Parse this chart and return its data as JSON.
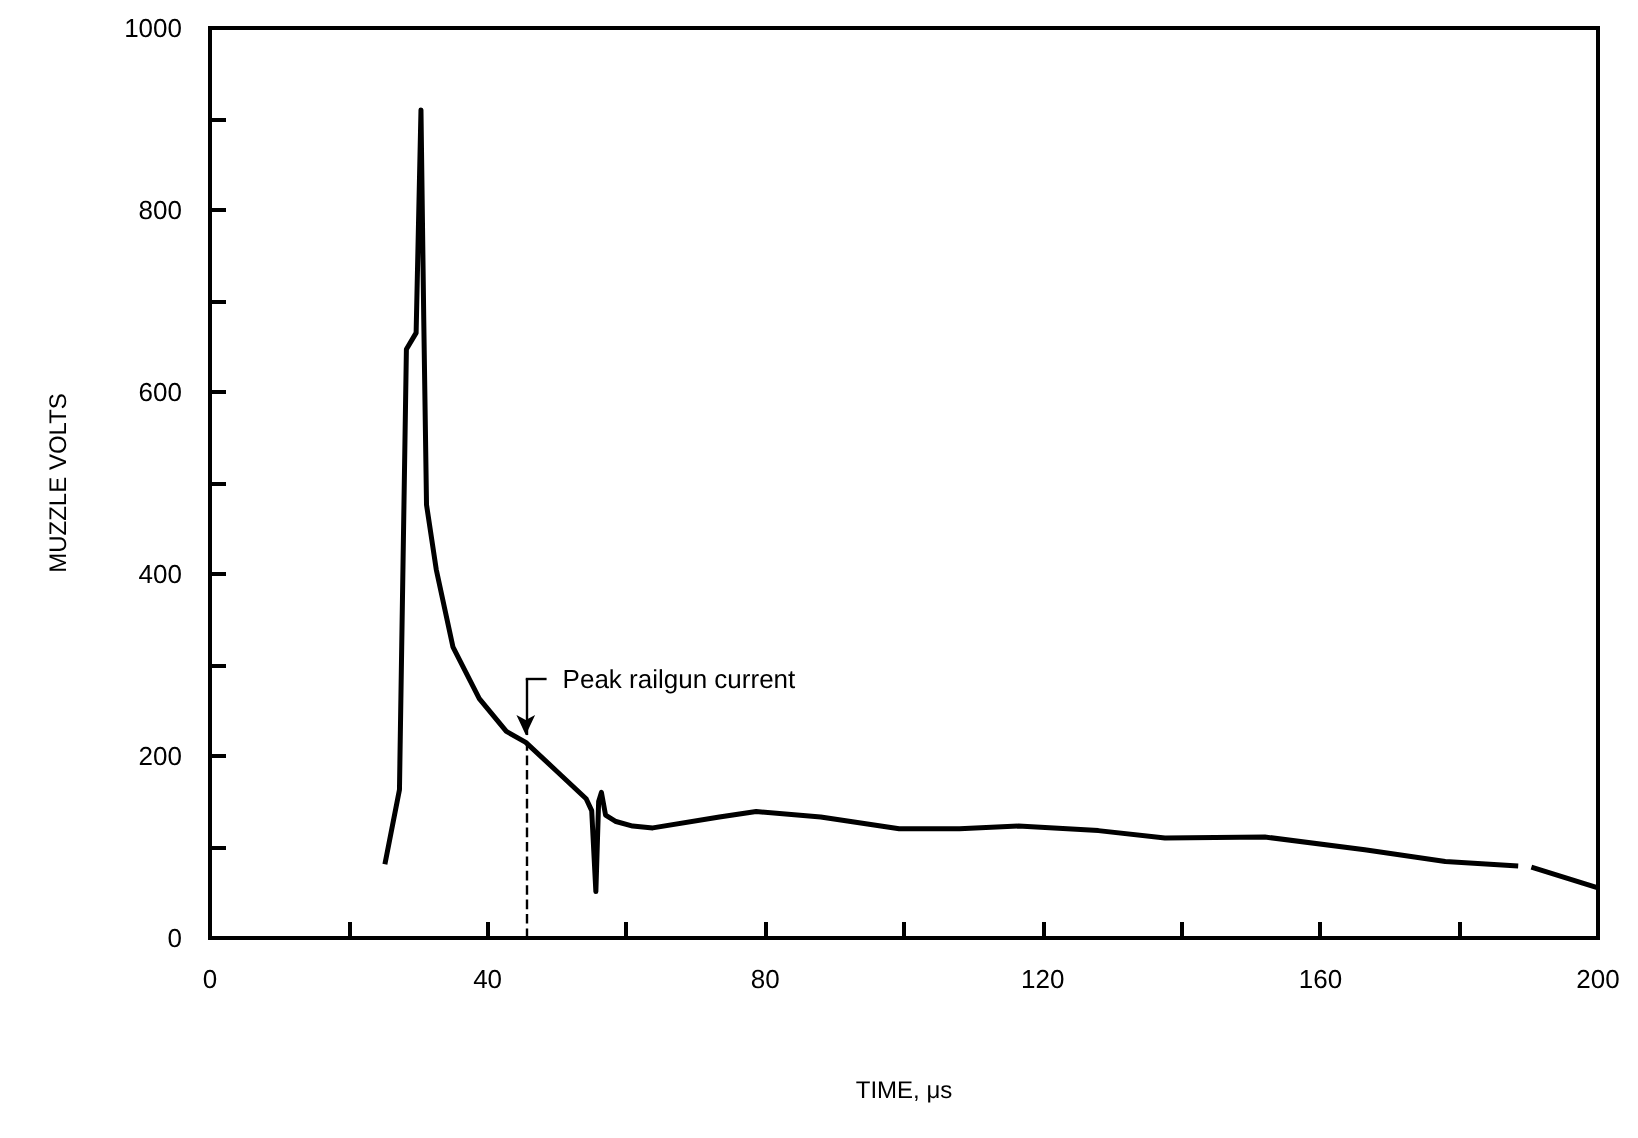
{
  "chart_data": {
    "type": "line",
    "xlabel": "TIME, μs",
    "ylabel": "MUZZLE VOLTS",
    "xlim": [
      0,
      200
    ],
    "ylim": [
      0,
      1000
    ],
    "xticks": [
      0,
      {
        "value": 20,
        "label": null
      },
      40,
      {
        "value": 60,
        "label": null
      },
      80,
      {
        "value": 100,
        "label": null
      },
      120,
      {
        "value": 140,
        "label": null
      },
      160,
      {
        "value": 180,
        "label": null
      },
      200
    ],
    "yticks": [
      0,
      {
        "value": 100,
        "label": null
      },
      200,
      {
        "value": 300,
        "label": null
      },
      400,
      {
        "value": 500,
        "label": null
      },
      600,
      {
        "value": 700,
        "label": null
      },
      800,
      {
        "value": 900,
        "label": null
      },
      1000
    ],
    "grid": false,
    "marker": "none",
    "line_style": "solid",
    "series": [
      {
        "color": "#000000",
        "x": [
          25.2,
          27.3,
          28.3,
          29.7,
          30.4,
          30.8,
          31.2,
          32.6,
          35,
          38.8,
          42.7,
          45.5,
          50,
          54.2,
          55,
          55.6,
          56,
          56.4,
          57,
          58.5,
          60.9,
          63.8,
          73.4,
          78.7,
          88,
          99.3,
          108,
          116.5,
          128,
          137.6,
          152,
          166.4,
          178,
          188.5,
          189.5,
          190.4,
          200
        ],
        "values": [
          81,
          163,
          647,
          665,
          910,
          680,
          476,
          405,
          320,
          263,
          227,
          215,
          183,
          153,
          140,
          51,
          150,
          160,
          135,
          128,
          123,
          121,
          133,
          139,
          133,
          120,
          120,
          123,
          118,
          110,
          111,
          97,
          84,
          79,
          null,
          78,
          55
        ]
      }
    ],
    "ref_lines": [
      {
        "axis": "x",
        "value": 45.5,
        "label": "Peak railgun current",
        "line_style": "dashed"
      }
    ]
  }
}
